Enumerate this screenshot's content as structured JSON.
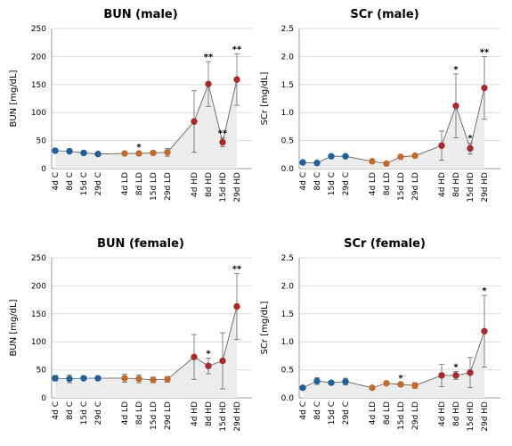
{
  "chart_data": [
    {
      "type": "line",
      "title": "BUN (male)",
      "ylabel": "BUN [mg/dL]",
      "ylim": [
        0,
        250
      ],
      "yticks": [
        "0",
        "50",
        "100",
        "150",
        "200",
        "250"
      ],
      "categories": [
        "4d C",
        "8d C",
        "15d C",
        "29d C",
        "4d LD",
        "8d LD",
        "15d LD",
        "29d LD",
        "4d HD",
        "8d HD",
        "15d HD",
        "29d HD"
      ],
      "groups": [
        {
          "values": [
            32,
            31,
            28,
            26
          ],
          "errors": [
            3,
            3,
            3,
            3
          ],
          "color": "#1f5f9a"
        },
        {
          "values": [
            27,
            27,
            28,
            29
          ],
          "errors": [
            3,
            3,
            3,
            7
          ],
          "color": "#c26a2a"
        },
        {
          "values": [
            84,
            151,
            47,
            159
          ],
          "errors": [
            55,
            40,
            8,
            46
          ],
          "color": "#a52a2a"
        }
      ],
      "significance": [
        "",
        "",
        "",
        "",
        "",
        "*",
        "",
        "",
        "",
        "**",
        "**",
        "**"
      ],
      "grid": true
    },
    {
      "type": "line",
      "title": "SCr (male)",
      "ylabel": "SCr [mg/dL]",
      "ylim": [
        0,
        2.5
      ],
      "yticks": [
        "0.0",
        "0.5",
        "1.0",
        "1.5",
        "2.0",
        "2.5"
      ],
      "categories": [
        "4d C",
        "8d C",
        "15d C",
        "29d C",
        "4d LD",
        "8d LD",
        "15d LD",
        "29d LD",
        "4d HD",
        "8d HD",
        "15d HD",
        "29d HD"
      ],
      "groups": [
        {
          "values": [
            0.11,
            0.1,
            0.22,
            0.22
          ],
          "errors": [
            0.02,
            0.02,
            0.02,
            0.02
          ],
          "color": "#1f5f9a"
        },
        {
          "values": [
            0.13,
            0.09,
            0.21,
            0.23
          ],
          "errors": [
            0.02,
            0.02,
            0.02,
            0.02
          ],
          "color": "#c26a2a"
        },
        {
          "values": [
            0.41,
            1.12,
            0.36,
            1.44
          ],
          "errors": [
            0.26,
            0.57,
            0.1,
            0.56
          ],
          "color": "#a52a2a"
        }
      ],
      "significance": [
        "",
        "",
        "",
        "",
        "",
        "",
        "",
        "",
        "",
        "*",
        "*",
        "**"
      ],
      "grid": true
    },
    {
      "type": "line",
      "title": "BUN (female)",
      "ylabel": "BUN [mg/dL]",
      "ylim": [
        0,
        250
      ],
      "yticks": [
        "0",
        "50",
        "100",
        "150",
        "200",
        "250"
      ],
      "categories": [
        "4d C",
        "8d C",
        "15d C",
        "29d C",
        "4d LD",
        "8d LD",
        "15d LD",
        "29d LD",
        "4d HD",
        "8d HD",
        "15d HD",
        "29d HD"
      ],
      "groups": [
        {
          "values": [
            35,
            34,
            35,
            35
          ],
          "errors": [
            5,
            7,
            3,
            3
          ],
          "color": "#1f5f9a"
        },
        {
          "values": [
            35,
            34,
            32,
            33
          ],
          "errors": [
            7,
            7,
            5,
            5
          ],
          "color": "#c26a2a"
        },
        {
          "values": [
            73,
            57,
            66,
            163
          ],
          "errors": [
            40,
            14,
            50,
            59
          ],
          "color": "#a52a2a"
        }
      ],
      "significance": [
        "",
        "",
        "",
        "",
        "",
        "",
        "",
        "",
        "",
        "*",
        "",
        "**"
      ],
      "grid": true
    },
    {
      "type": "line",
      "title": "SCr (female)",
      "ylabel": "SCr [mg/dL]",
      "ylim": [
        0,
        2.5
      ],
      "yticks": [
        "0.0",
        "0.5",
        "1.0",
        "1.5",
        "2.0",
        "2.5"
      ],
      "categories": [
        "4d C",
        "8d C",
        "15d C",
        "29d C",
        "4d LD",
        "8d LD",
        "15d LD",
        "29d LD",
        "4d HD",
        "8d HD",
        "15d HD",
        "29d HD"
      ],
      "groups": [
        {
          "values": [
            0.18,
            0.3,
            0.27,
            0.29
          ],
          "errors": [
            0.02,
            0.06,
            0.03,
            0.06
          ],
          "color": "#1f5f9a"
        },
        {
          "values": [
            0.18,
            0.26,
            0.24,
            0.22
          ],
          "errors": [
            0.02,
            0.03,
            0.03,
            0.05
          ],
          "color": "#c26a2a"
        },
        {
          "values": [
            0.4,
            0.4,
            0.45,
            1.19
          ],
          "errors": [
            0.2,
            0.07,
            0.27,
            0.64
          ],
          "color": "#a52a2a"
        }
      ],
      "significance": [
        "",
        "",
        "",
        "",
        "",
        "",
        "*",
        "",
        "",
        "*",
        "",
        "*"
      ],
      "grid": true
    }
  ]
}
